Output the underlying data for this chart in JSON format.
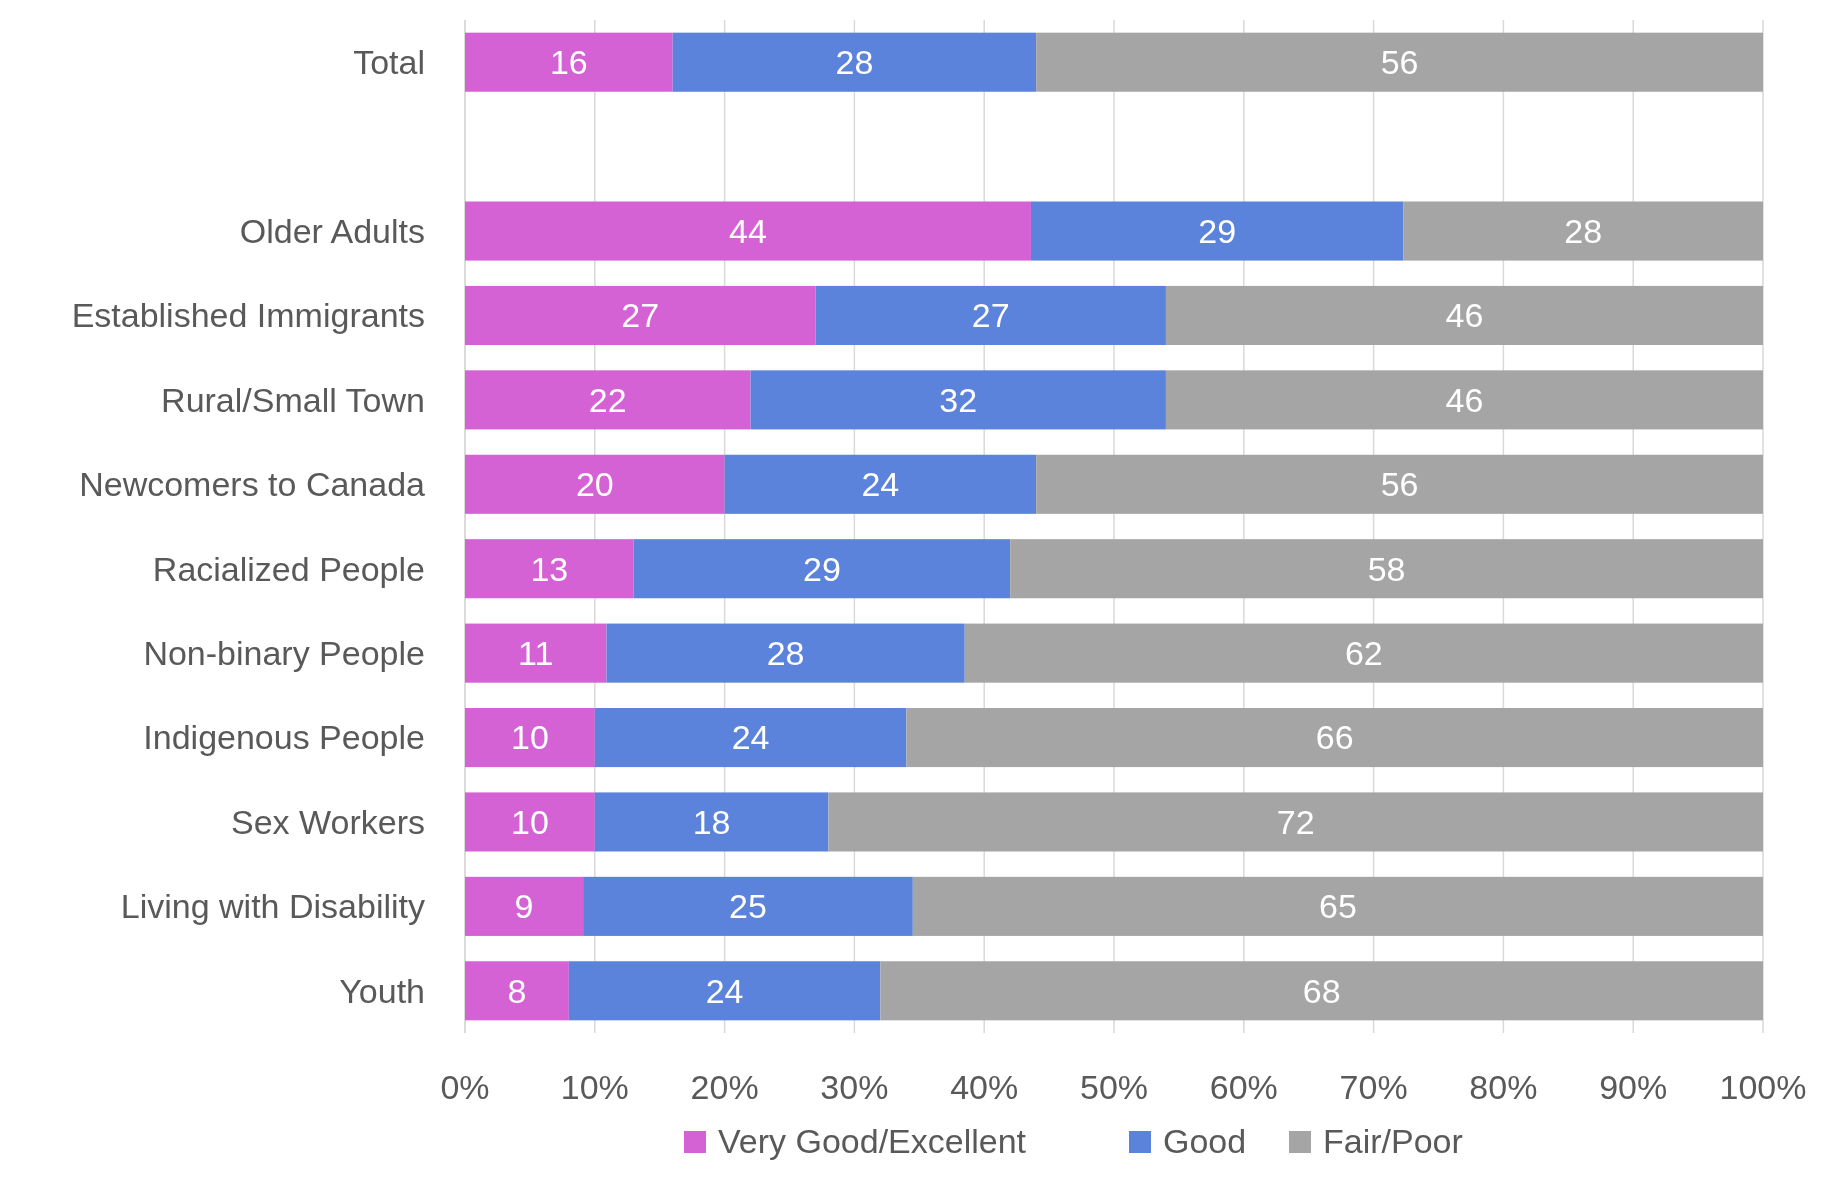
{
  "chart_data": {
    "type": "bar",
    "orientation": "horizontal",
    "stacked": true,
    "categories": [
      "Total",
      null,
      "Older Adults",
      "Established Immigrants",
      "Rural/Small Town",
      "Newcomers to Canada",
      "Racialized People",
      "Non-binary People",
      "Indigenous People",
      "Sex Workers",
      "Living with Disability",
      "Youth"
    ],
    "series": [
      {
        "name": "Very Good/Excellent",
        "color": "#d462d4",
        "values": [
          16,
          null,
          43.6,
          27,
          22,
          20,
          13,
          10.9,
          10,
          10,
          9.1,
          8
        ],
        "value_labels": [
          "16",
          null,
          "44",
          "27",
          "22",
          "20",
          "13",
          "11",
          "10",
          "10",
          "9",
          "8"
        ]
      },
      {
        "name": "Good",
        "color": "#5b83db",
        "values": [
          28,
          null,
          28.7,
          27,
          32,
          24,
          29,
          27.6,
          24,
          18,
          25.4,
          24
        ],
        "value_labels": [
          "28",
          null,
          "29",
          "27",
          "32",
          "24",
          "29",
          "28",
          "24",
          "18",
          "25",
          "24"
        ]
      },
      {
        "name": "Fair/Poor",
        "color": "#a5a5a5",
        "values": [
          56,
          null,
          27.7,
          46,
          46,
          56,
          58,
          61.5,
          66,
          72,
          65.5,
          68
        ],
        "value_labels": [
          "56",
          null,
          "28",
          "46",
          "46",
          "56",
          "58",
          "62",
          "66",
          "72",
          "65",
          "68"
        ]
      }
    ],
    "xlim": [
      0,
      100
    ],
    "xticks": [
      {
        "value": 0,
        "label": "0%"
      },
      {
        "value": 10,
        "label": "10%"
      },
      {
        "value": 20,
        "label": "20%"
      },
      {
        "value": 30,
        "label": "30%"
      },
      {
        "value": 40,
        "label": "40%"
      },
      {
        "value": 50,
        "label": "50%"
      },
      {
        "value": 60,
        "label": "60%"
      },
      {
        "value": 70,
        "label": "70%"
      },
      {
        "value": 80,
        "label": "80%"
      },
      {
        "value": 90,
        "label": "90%"
      },
      {
        "value": 100,
        "label": "100%"
      }
    ],
    "grid": "x",
    "legend": "bottom"
  }
}
